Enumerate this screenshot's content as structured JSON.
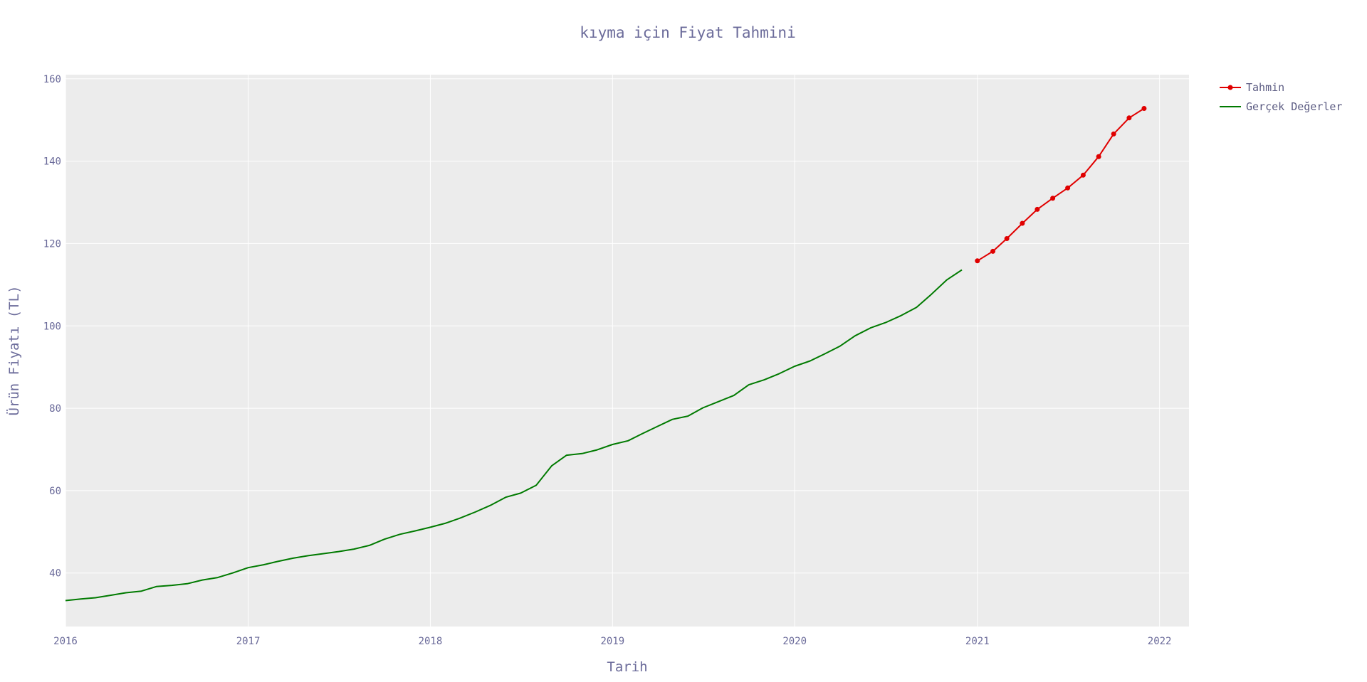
{
  "chart_data": {
    "type": "line",
    "title": "kıyma için Fiyat Tahmini",
    "xlabel": "Tarih",
    "ylabel": "Ürün Fiyatı (TL)",
    "xlim": [
      "2016-01-01",
      "2022-03-01"
    ],
    "ylim": [
      27,
      161
    ],
    "grid": true,
    "legend_position": "top-right",
    "x_ticks": [
      "2016",
      "2017",
      "2018",
      "2019",
      "2020",
      "2021",
      "2022"
    ],
    "y_ticks": [
      40,
      60,
      80,
      100,
      120,
      140,
      160
    ],
    "series": [
      {
        "name": "Tahmin",
        "color": "#e00000",
        "markers": true,
        "x": [
          "2021-01-01",
          "2021-02-01",
          "2021-03-01",
          "2021-04-01",
          "2021-05-01",
          "2021-06-01",
          "2021-07-01",
          "2021-08-01",
          "2021-09-01",
          "2021-10-01",
          "2021-11-01",
          "2021-12-01"
        ],
        "values": [
          115.8,
          118.1,
          121.2,
          124.9,
          128.3,
          131.0,
          133.5,
          136.6,
          141.1,
          146.6,
          150.5,
          152.8
        ]
      },
      {
        "name": "Gerçek Değerler",
        "color": "#007a00",
        "markers": false,
        "x": [
          "2016-01-01",
          "2016-02-01",
          "2016-03-01",
          "2016-04-01",
          "2016-05-01",
          "2016-06-01",
          "2016-07-01",
          "2016-08-01",
          "2016-09-01",
          "2016-10-01",
          "2016-11-01",
          "2016-12-01",
          "2017-01-01",
          "2017-02-01",
          "2017-03-01",
          "2017-04-01",
          "2017-05-01",
          "2017-06-01",
          "2017-07-01",
          "2017-08-01",
          "2017-09-01",
          "2017-10-01",
          "2017-11-01",
          "2017-12-01",
          "2018-01-01",
          "2018-02-01",
          "2018-03-01",
          "2018-04-01",
          "2018-05-01",
          "2018-06-01",
          "2018-07-01",
          "2018-08-01",
          "2018-09-01",
          "2018-10-01",
          "2018-11-01",
          "2018-12-01",
          "2019-01-01",
          "2019-02-01",
          "2019-03-01",
          "2019-04-01",
          "2019-05-01",
          "2019-06-01",
          "2019-07-01",
          "2019-08-01",
          "2019-09-01",
          "2019-10-01",
          "2019-11-01",
          "2019-12-01",
          "2020-01-01",
          "2020-02-01",
          "2020-03-01",
          "2020-04-01",
          "2020-05-01",
          "2020-06-01",
          "2020-07-01",
          "2020-08-01",
          "2020-09-01",
          "2020-10-01",
          "2020-11-01",
          "2020-12-01"
        ],
        "values": [
          33.3,
          33.7,
          34.0,
          34.6,
          35.2,
          35.6,
          36.7,
          37.0,
          37.4,
          38.3,
          38.9,
          40.0,
          41.3,
          42.0,
          42.8,
          43.6,
          44.2,
          44.7,
          45.2,
          45.8,
          46.7,
          48.2,
          49.4,
          50.2,
          51.1,
          52.1,
          53.3,
          54.8,
          56.4,
          58.4,
          59.4,
          61.3,
          66.0,
          68.6,
          69.0,
          69.9,
          71.2,
          72.1,
          73.8,
          75.6,
          77.3,
          78.1,
          80.1,
          81.6,
          83.1,
          85.7,
          86.9,
          88.4,
          90.2,
          91.5,
          93.2,
          95.1,
          97.6,
          99.5,
          100.8,
          102.5,
          104.5,
          107.7,
          111.2,
          113.6
        ]
      }
    ]
  }
}
